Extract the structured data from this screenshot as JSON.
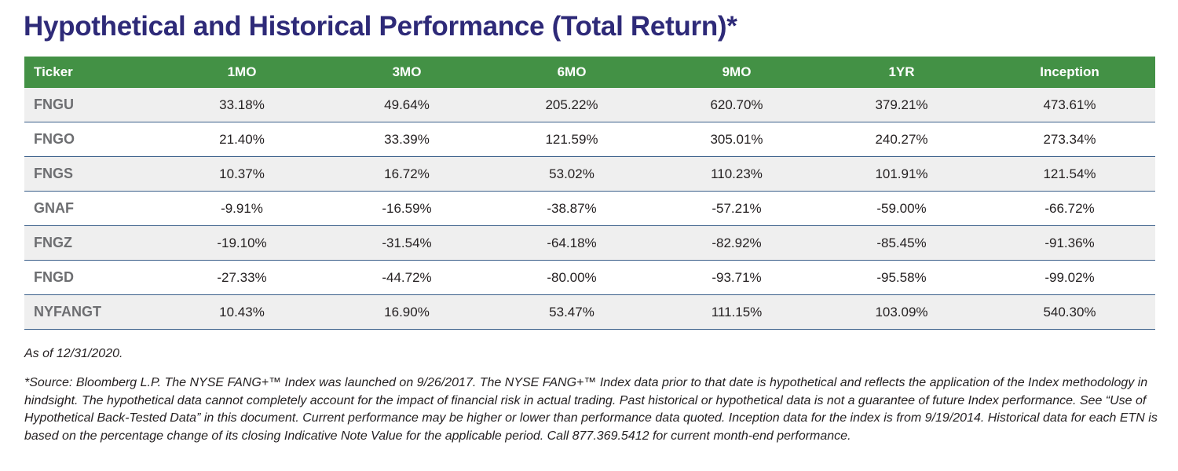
{
  "title": "Hypothetical and Historical Performance (Total Return)*",
  "table": {
    "headers": [
      "Ticker",
      "1MO",
      "3MO",
      "6MO",
      "9MO",
      "1YR",
      "Inception"
    ],
    "rows": [
      [
        "FNGU",
        "33.18%",
        "49.64%",
        "205.22%",
        "620.70%",
        "379.21%",
        "473.61%"
      ],
      [
        "FNGO",
        "21.40%",
        "33.39%",
        "121.59%",
        "305.01%",
        "240.27%",
        "273.34%"
      ],
      [
        "FNGS",
        "10.37%",
        "16.72%",
        "53.02%",
        "110.23%",
        "101.91%",
        "121.54%"
      ],
      [
        "GNAF",
        "-9.91%",
        "-16.59%",
        "-38.87%",
        "-57.21%",
        "-59.00%",
        "-66.72%"
      ],
      [
        "FNGZ",
        "-19.10%",
        "-31.54%",
        "-64.18%",
        "-82.92%",
        "-85.45%",
        "-91.36%"
      ],
      [
        "FNGD",
        "-27.33%",
        "-44.72%",
        "-80.00%",
        "-93.71%",
        "-95.58%",
        "-99.02%"
      ],
      [
        "NYFANGT",
        "10.43%",
        "16.90%",
        "53.47%",
        "111.15%",
        "103.09%",
        "540.30%"
      ]
    ]
  },
  "as_of": "As of 12/31/2020.",
  "footnote": "*Source: Bloomberg L.P. The NYSE FANG+™ Index was launched on 9/26/2017. The NYSE FANG+™ Index data prior to that date is hypothetical and reflects the application of the Index methodology in hindsight. The hypothetical data cannot completely account for the impact of financial risk in actual trading. Past historical or hypothetical data is not a guarantee of future Index performance. See “Use of Hypothetical Back-Tested Data” in this document. Current performance may be higher or lower than performance data quoted. Inception data for the index is from 9/19/2014. Historical data for each ETN is based on the percentage change of its closing Indicative Note Value for the applicable period. Call 877.369.5412 for current month-end performance.",
  "colors": {
    "title": "#2e2a78",
    "header_bg": "#439145",
    "row_alt_bg": "#efefef",
    "row_border": "#3b5f8a",
    "ticker_text": "#6d6e71"
  }
}
